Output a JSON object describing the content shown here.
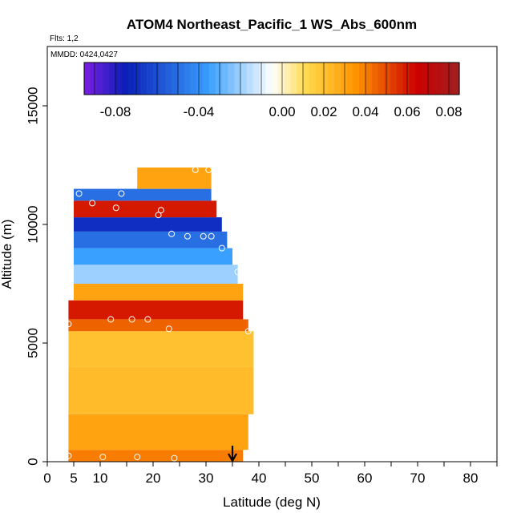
{
  "chart_data": {
    "type": "heatmap",
    "title": "ATOM4 Northeast_Pacific_1 WS_Abs_600nm",
    "flights_label": "Flts: 1,2",
    "mmdd_label": "MMDD: 0424,0427",
    "xlabel": "Latitude (deg N)",
    "ylabel": "Altitude (m)",
    "xlim": [
      0,
      85
    ],
    "ylim": [
      0,
      17500
    ],
    "x_ticks": [
      0,
      5,
      10,
      20,
      30,
      40,
      50,
      60,
      70,
      80
    ],
    "y_ticks": [
      0,
      5000,
      10000,
      15000
    ],
    "colorbar": {
      "range": [
        -0.095,
        0.085
      ],
      "tick_values": [
        -0.08,
        -0.04,
        0.0,
        0.02,
        0.04,
        0.06,
        0.08
      ],
      "tick_labels": [
        "-0.08",
        "-0.04",
        "0.00",
        "0.02",
        "0.04",
        "0.06",
        "0.08"
      ]
    },
    "colors": {
      "strong_negative": "#7a1fe0",
      "negative": "#0a1eb8",
      "light_negative": "#3aa0ff",
      "near_zero": "#ffffff",
      "small_positive": "#ffd84a",
      "positive": "#ff9500",
      "strong_positive": "#cc0000",
      "max_positive": "#a02020"
    },
    "profile_bands": [
      {
        "alt_range": [
          0,
          500
        ],
        "lat_range": [
          4,
          37
        ],
        "value": 0.04
      },
      {
        "alt_range": [
          500,
          2000
        ],
        "lat_range": [
          4,
          38
        ],
        "value": 0.03
      },
      {
        "alt_range": [
          2000,
          4000
        ],
        "lat_range": [
          4,
          39
        ],
        "value": 0.022
      },
      {
        "alt_range": [
          4000,
          5500
        ],
        "lat_range": [
          4,
          39
        ],
        "value": 0.02
      },
      {
        "alt_range": [
          5500,
          6000
        ],
        "lat_range": [
          4,
          38
        ],
        "value": 0.045
      },
      {
        "alt_range": [
          6000,
          6800
        ],
        "lat_range": [
          4,
          37
        ],
        "value": 0.06
      },
      {
        "alt_range": [
          6800,
          7500
        ],
        "lat_range": [
          5,
          37
        ],
        "value": 0.03
      },
      {
        "alt_range": [
          7500,
          8300
        ],
        "lat_range": [
          5,
          36
        ],
        "value": -0.02
      },
      {
        "alt_range": [
          8300,
          9000
        ],
        "lat_range": [
          5,
          35
        ],
        "value": -0.035
      },
      {
        "alt_range": [
          9000,
          9700
        ],
        "lat_range": [
          5,
          34
        ],
        "value": -0.05
      },
      {
        "alt_range": [
          9700,
          10300
        ],
        "lat_range": [
          5,
          33
        ],
        "value": -0.07
      },
      {
        "alt_range": [
          10300,
          11000
        ],
        "lat_range": [
          5,
          32
        ],
        "value": 0.06
      },
      {
        "alt_range": [
          11000,
          11500
        ],
        "lat_range": [
          5,
          31
        ],
        "value": -0.05
      },
      {
        "alt_range": [
          11500,
          12400
        ],
        "lat_range": [
          17,
          31
        ],
        "value": 0.03
      }
    ],
    "sample_points": [
      {
        "lat": 4,
        "alt": 250
      },
      {
        "lat": 10.5,
        "alt": 200
      },
      {
        "lat": 17,
        "alt": 200
      },
      {
        "lat": 24,
        "alt": 150
      },
      {
        "lat": 4,
        "alt": 5800
      },
      {
        "lat": 12,
        "alt": 6000
      },
      {
        "lat": 16,
        "alt": 6000
      },
      {
        "lat": 19,
        "alt": 6000
      },
      {
        "lat": 23,
        "alt": 5600
      },
      {
        "lat": 38,
        "alt": 5500
      },
      {
        "lat": 36,
        "alt": 8000
      },
      {
        "lat": 33,
        "alt": 9000
      },
      {
        "lat": 23.5,
        "alt": 9600
      },
      {
        "lat": 26.5,
        "alt": 9500
      },
      {
        "lat": 29.5,
        "alt": 9500
      },
      {
        "lat": 31,
        "alt": 9500
      },
      {
        "lat": 21,
        "alt": 10400
      },
      {
        "lat": 21.5,
        "alt": 10600
      },
      {
        "lat": 13,
        "alt": 10700
      },
      {
        "lat": 8.5,
        "alt": 10900
      },
      {
        "lat": 6,
        "alt": 11300
      },
      {
        "lat": 14,
        "alt": 11300
      },
      {
        "lat": 28,
        "alt": 12300
      },
      {
        "lat": 30.5,
        "alt": 12300
      }
    ],
    "marker": {
      "lat": 35,
      "alt": 0
    },
    "grid": false
  }
}
